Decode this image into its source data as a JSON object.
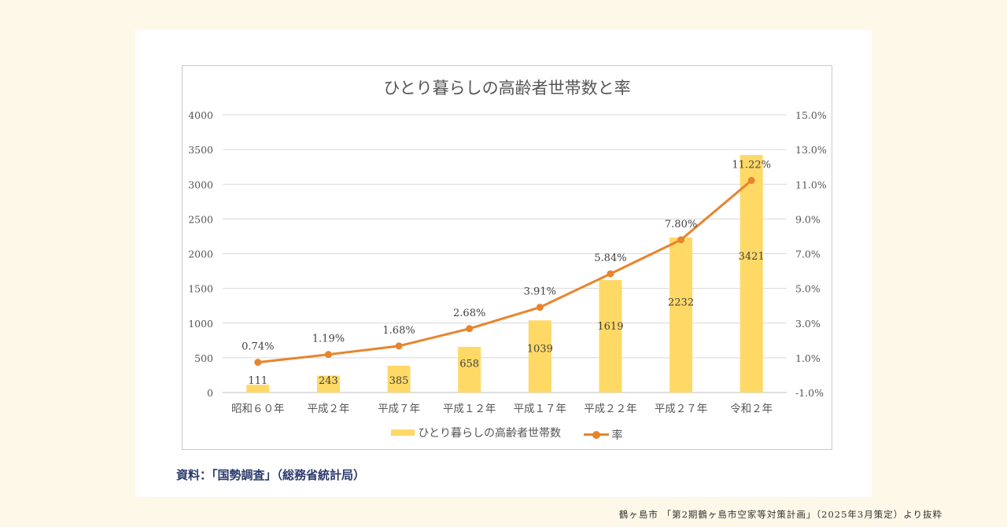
{
  "chart_data": {
    "type": "bar+line",
    "title": "ひとり暮らしの高齢者世帯数と率",
    "categories": [
      "昭和６０年",
      "平成２年",
      "平成７年",
      "平成１２年",
      "平成１７年",
      "平成２２年",
      "平成２７年",
      "令和２年"
    ],
    "series": [
      {
        "name": "ひとり暮らしの高齢者世帯数",
        "type": "bar",
        "axis": "left",
        "color": "#ffd966",
        "values": [
          111,
          243,
          385,
          658,
          1039,
          1619,
          2232,
          3421
        ],
        "labels": [
          "111",
          "243",
          "385",
          "658",
          "1039",
          "1619",
          "2232",
          "3421"
        ]
      },
      {
        "name": "率",
        "type": "line",
        "axis": "right",
        "color": "#e8842c",
        "values": [
          0.74,
          1.19,
          1.68,
          2.68,
          3.91,
          5.84,
          7.8,
          11.22
        ],
        "labels": [
          "0.74%",
          "1.19%",
          "1.68%",
          "2.68%",
          "3.91%",
          "5.84%",
          "7.80%",
          "11.22%"
        ]
      }
    ],
    "ylim_left": [
      0,
      4000
    ],
    "yticks_left": [
      "0",
      "500",
      "1000",
      "1500",
      "2000",
      "2500",
      "3000",
      "3500",
      "4000"
    ],
    "ylim_right": [
      -1.0,
      15.0
    ],
    "yticks_right": [
      "-1.0%",
      "1.0%",
      "3.0%",
      "5.0%",
      "7.0%",
      "9.0%",
      "11.0%",
      "13.0%",
      "15.0%"
    ],
    "grid": true,
    "legend_position": "bottom"
  },
  "source_note": "資料：「国勢調査」（総務省統計局）",
  "credit": "鶴ヶ島市 「第2期鶴ヶ島市空家等対策計画」（2025年3月策定）より抜粋"
}
